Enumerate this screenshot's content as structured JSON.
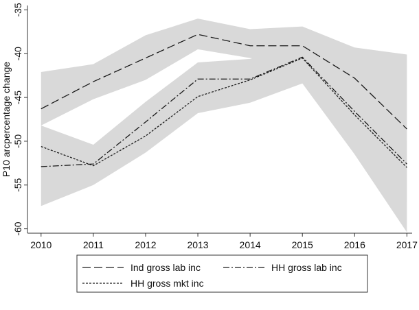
{
  "chart_data": {
    "type": "line",
    "y_label": "P10 arcpercentage change",
    "x": [
      2010,
      2011,
      2012,
      2013,
      2014,
      2015,
      2016,
      2017
    ],
    "xlim": [
      2009.74,
      2017.1
    ],
    "xticks": [
      2010,
      2011,
      2012,
      2013,
      2014,
      2015,
      2016,
      2017
    ],
    "ylim": [
      -60.5,
      -34.5
    ],
    "yticks": [
      -60,
      -55,
      -50,
      -45,
      -40,
      -35
    ],
    "band_color": "#d9d9d9",
    "bands": [
      {
        "upper": [
          -42.1,
          -41.2,
          -37.9,
          -36.0,
          -37.2,
          -36.9,
          -39.3,
          -40.1
        ],
        "lower": [
          -48.2,
          -45.2,
          -43.0,
          -39.5,
          -40.5,
          -41.0,
          -46.0,
          -57.0
        ]
      },
      {
        "upper": [
          -48.2,
          -50.4,
          -45.5,
          -41.0,
          -40.6,
          -38.5,
          -43.0,
          -50.0
        ],
        "lower": [
          -57.4,
          -55.0,
          -51.3,
          -46.8,
          -45.6,
          -43.4,
          -51.5,
          -60.4
        ]
      }
    ],
    "series": [
      {
        "name": "Ind gross lab inc",
        "color": "#1a1a1a",
        "dash": "12 5",
        "values": [
          -46.3,
          -43.2,
          -40.5,
          -37.8,
          -39.1,
          -39.1,
          -42.8,
          -48.6
        ]
      },
      {
        "name": "HH gross lab inc",
        "color": "#1a1a1a",
        "dash": "9 3 2 3",
        "values": [
          -52.9,
          -52.6,
          -47.8,
          -42.9,
          -42.9,
          -40.4,
          -46.6,
          -52.6
        ]
      },
      {
        "name": "HH gross mkt inc",
        "color": "#1a1a1a",
        "dash": "3 2",
        "values": [
          -50.6,
          -52.8,
          -49.4,
          -44.9,
          -43.0,
          -40.5,
          -47.0,
          -53.0
        ]
      }
    ]
  }
}
